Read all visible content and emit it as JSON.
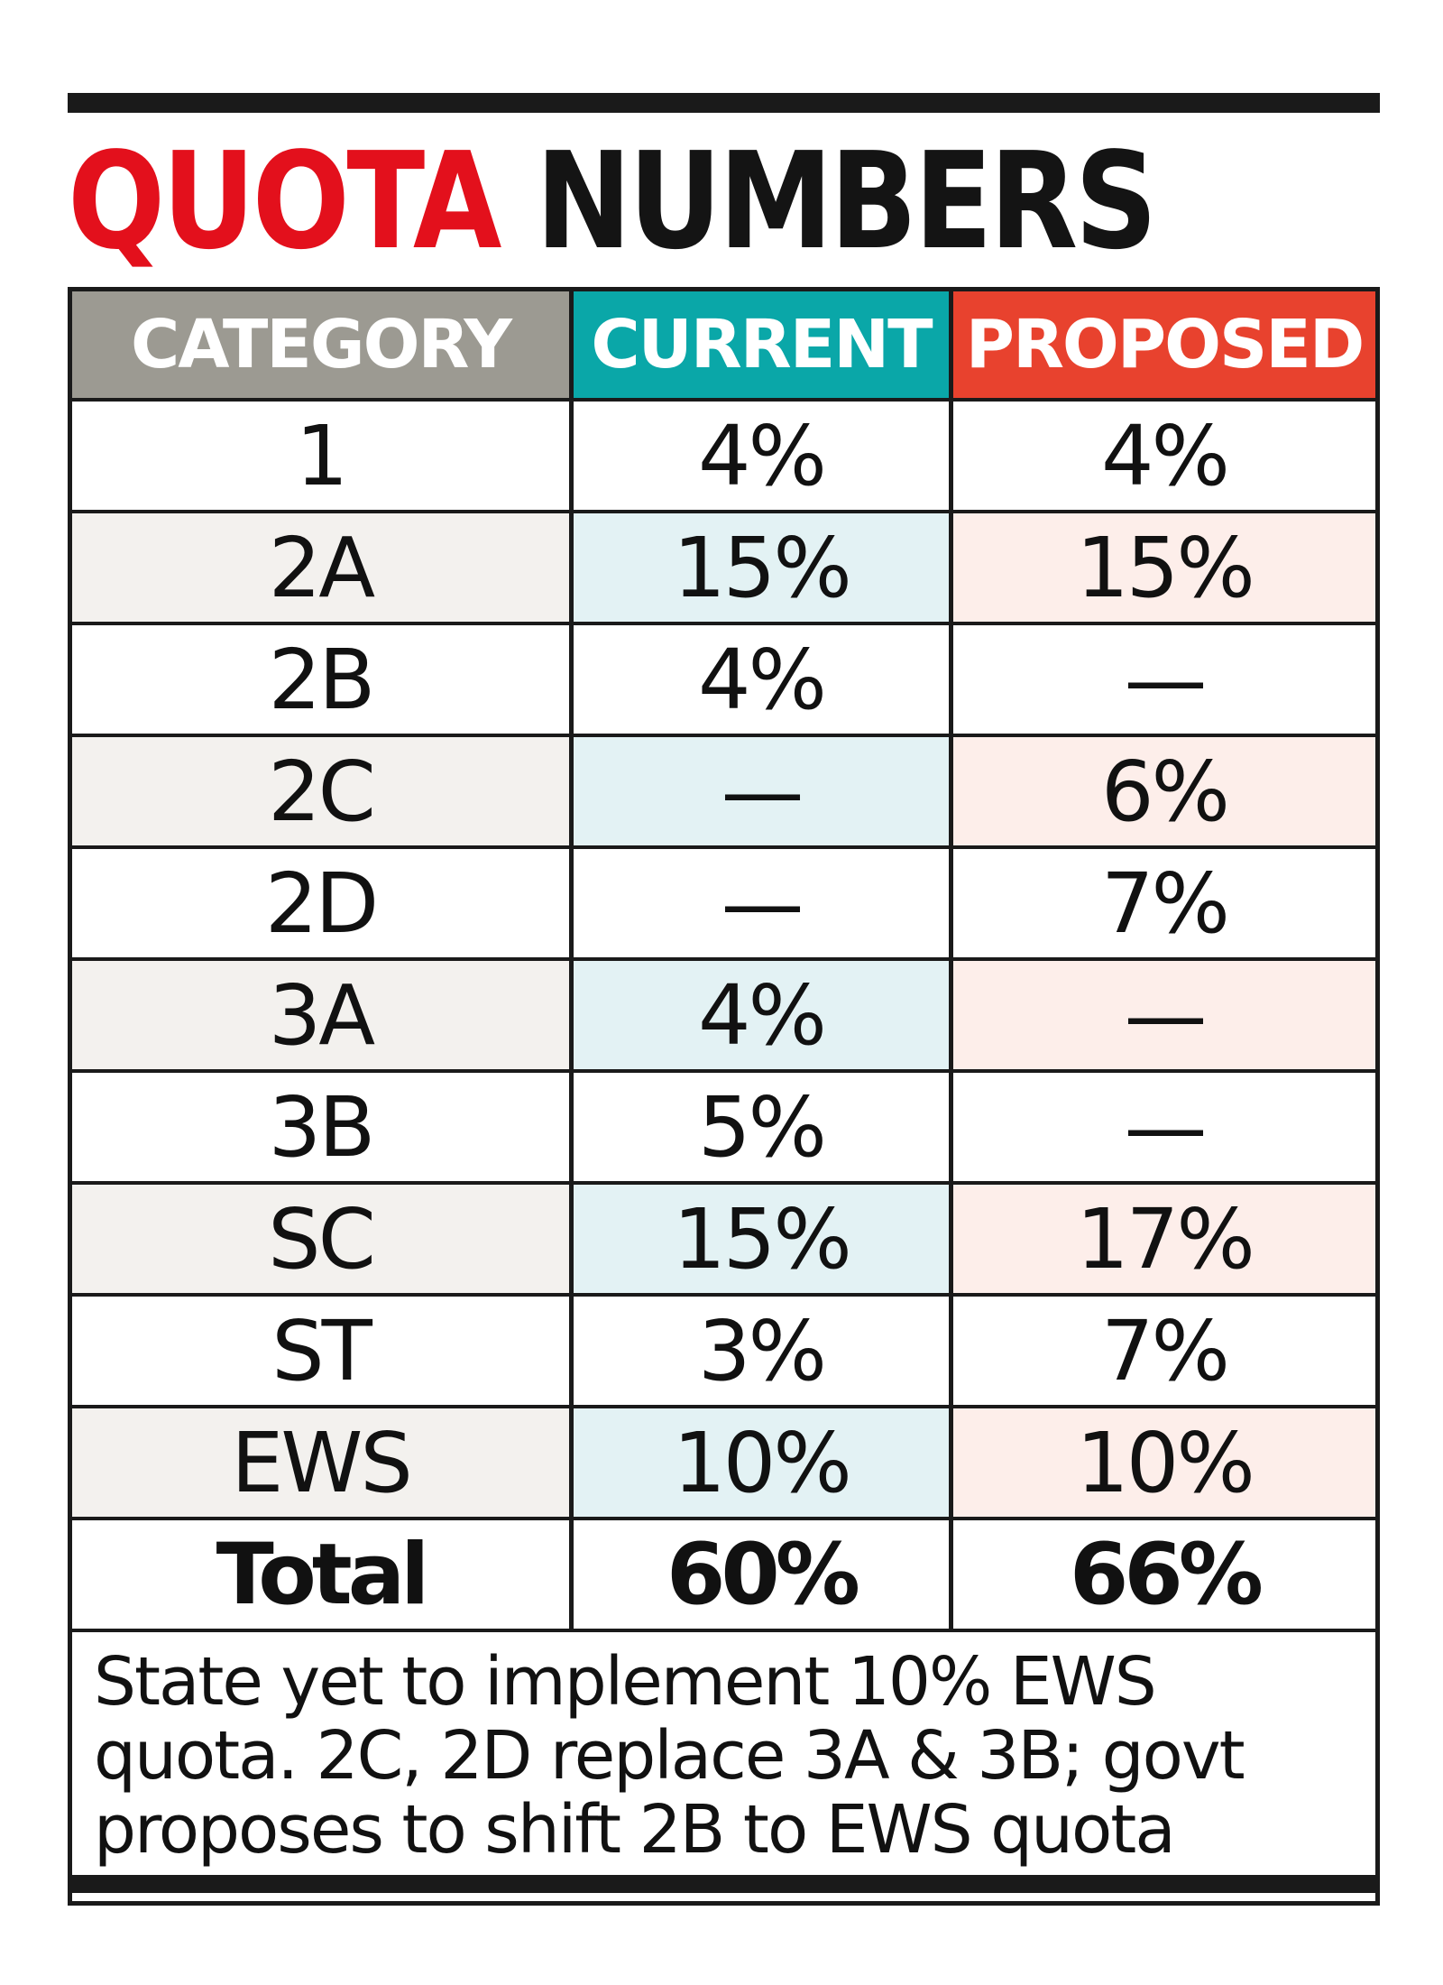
{
  "title": {
    "part1": "QUOTA",
    "part2": "NUMBERS"
  },
  "colors": {
    "title_red": "#e3101c",
    "header_category": "#9c9a92",
    "header_current": "#0aa7a8",
    "header_proposed": "#e8422e"
  },
  "chart_data": {
    "type": "table",
    "title": "QUOTA NUMBERS",
    "columns": [
      "CATEGORY",
      "CURRENT",
      "PROPOSED"
    ],
    "rows": [
      {
        "category": "1",
        "current": "4%",
        "proposed": "4%"
      },
      {
        "category": "2A",
        "current": "15%",
        "proposed": "15%"
      },
      {
        "category": "2B",
        "current": "4%",
        "proposed": "—"
      },
      {
        "category": "2C",
        "current": "—",
        "proposed": "6%"
      },
      {
        "category": "2D",
        "current": "—",
        "proposed": "7%"
      },
      {
        "category": "3A",
        "current": "4%",
        "proposed": "—"
      },
      {
        "category": "3B",
        "current": "5%",
        "proposed": "—"
      },
      {
        "category": "SC",
        "current": "15%",
        "proposed": "17%"
      },
      {
        "category": "ST",
        "current": "3%",
        "proposed": "7%"
      },
      {
        "category": "EWS",
        "current": "10%",
        "proposed": "10%"
      }
    ],
    "total": {
      "category": "Total",
      "current": "60%",
      "proposed": "66%"
    },
    "note": "State yet to implement 10% EWS quota. 2C, 2D replace 3A & 3B; govt proposes to shift 2B to EWS quota"
  }
}
